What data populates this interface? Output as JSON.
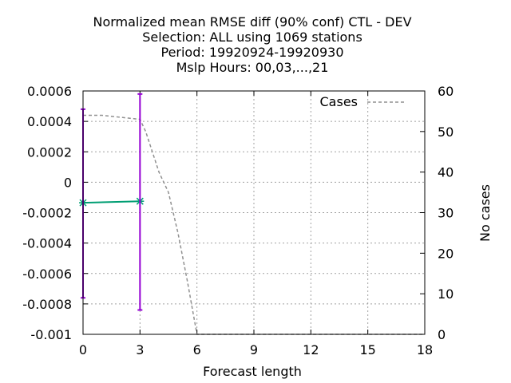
{
  "chart_data": {
    "type": "line",
    "title_lines": [
      "Normalized mean RMSE diff (90% conf) CTL - DEV",
      "Selection: ALL using  1069 stations",
      "Period: 19920924-19920930",
      "Mslp   Hours:  00,03,...,21"
    ],
    "xlabel": "Forecast length",
    "ylabel": "",
    "y2label": "No cases",
    "xlim": [
      0,
      18
    ],
    "ylim": [
      -0.001,
      0.0006
    ],
    "y2lim": [
      0,
      60
    ],
    "xticks": [
      "0",
      "3",
      "6",
      "9",
      "12",
      "15",
      "18"
    ],
    "yticks": [
      "0.0006",
      "0.0004",
      "0.0002",
      "0",
      "-0.0002",
      "-0.0004",
      "-0.0006",
      "-0.0008",
      "-0.001"
    ],
    "y2ticks": [
      "60",
      "50",
      "40",
      "30",
      "20",
      "10",
      "0"
    ],
    "grid": true,
    "legend_position": "top-right",
    "series": [
      {
        "name": "",
        "axis": "y1",
        "color": "#009e73",
        "x": [
          0,
          3
        ],
        "y": [
          -0.000135,
          -0.000125
        ]
      },
      {
        "name": "Cases",
        "axis": "y2",
        "color": "#909090",
        "style": "dashed",
        "x": [
          0,
          1,
          2,
          3,
          3.3,
          4,
          4.5,
          5,
          5.5,
          6,
          18
        ],
        "y": [
          54,
          54,
          53.5,
          53,
          50,
          40,
          35,
          25,
          13,
          0,
          0
        ]
      }
    ],
    "error_bars": {
      "color": "#9400d3",
      "x": [
        0,
        3
      ],
      "low": [
        -0.00076,
        -0.00084
      ],
      "high": [
        0.00048,
        0.00058
      ]
    }
  }
}
